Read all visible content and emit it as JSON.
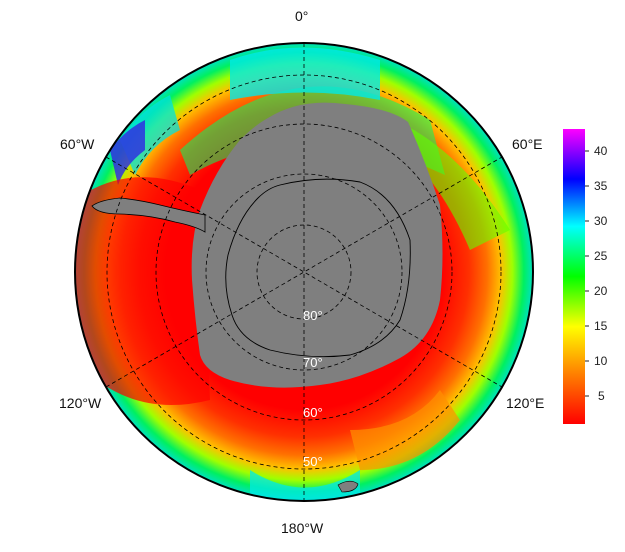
{
  "map": {
    "projection": "south-polar-stereographic",
    "lon_labels": {
      "top": "0°",
      "upper_left": "60°W",
      "upper_right": "60°E",
      "lower_left": "120°W",
      "lower_right": "120°E",
      "bottom": "180°W"
    },
    "lat_labels": [
      "80°",
      "70°",
      "60°",
      "50°"
    ],
    "colors": {
      "land": "#7f7f7f",
      "background": "#ffffff",
      "gridline": "#000000"
    }
  },
  "colorbar": {
    "ticks": [
      "40",
      "35",
      "30",
      "25",
      "20",
      "15",
      "10",
      "5"
    ],
    "range": [
      1,
      43
    ],
    "palette": [
      "#ff0000",
      "#ff8000",
      "#ffff00",
      "#00ff00",
      "#00ffff",
      "#0000ff",
      "#ff00ff"
    ]
  }
}
